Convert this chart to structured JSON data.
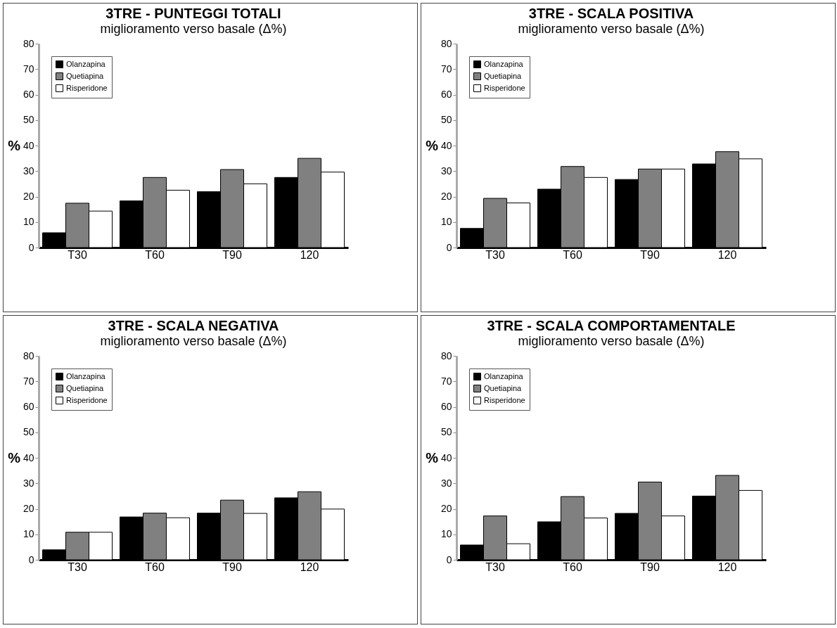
{
  "chart_data": [
    {
      "type": "bar",
      "title": "3TRE - PUNTEGGI TOTALI",
      "subtitle": "miglioramento verso basale (Δ%)",
      "ylabel": "%",
      "categories": [
        "T30",
        "T60",
        "T90",
        "120"
      ],
      "ylim": [
        0,
        80
      ],
      "yticks": [
        0,
        10,
        20,
        30,
        40,
        50,
        60,
        70,
        80
      ],
      "legend": "top left",
      "series": [
        {
          "name": "Olanzapina",
          "color": "#000000",
          "values": [
            5.8,
            18.3,
            21.9,
            27.5
          ]
        },
        {
          "name": "Quetiapina",
          "color": "#808080",
          "values": [
            17.4,
            27.5,
            30.6,
            35
          ]
        },
        {
          "name": "Risperidone",
          "color": "#ffffff",
          "values": [
            14.3,
            22.5,
            25,
            29.6
          ]
        }
      ]
    },
    {
      "type": "bar",
      "title": "3TRE - SCALA POSITIVA",
      "subtitle": "miglioramento verso basale (Δ%)",
      "ylabel": "%",
      "categories": [
        "T30",
        "T60",
        "T90",
        "120"
      ],
      "ylim": [
        0,
        80
      ],
      "yticks": [
        0,
        10,
        20,
        30,
        40,
        50,
        60,
        70,
        80
      ],
      "legend": "top left",
      "series": [
        {
          "name": "Olanzapina",
          "color": "#000000",
          "values": [
            7.5,
            22.9,
            26.7,
            32.8
          ]
        },
        {
          "name": "Quetiapina",
          "color": "#808080",
          "values": [
            19.3,
            31.8,
            30.8,
            37.6
          ]
        },
        {
          "name": "Risperidone",
          "color": "#ffffff",
          "values": [
            17.5,
            27.5,
            30.8,
            34.8
          ]
        }
      ]
    },
    {
      "type": "bar",
      "title": "3TRE - SCALA NEGATIVA",
      "subtitle": "miglioramento verso basale (Δ%)",
      "ylabel": "%",
      "categories": [
        "T30",
        "T60",
        "T90",
        "120"
      ],
      "ylim": [
        0,
        80
      ],
      "yticks": [
        0,
        10,
        20,
        30,
        40,
        50,
        60,
        70,
        80
      ],
      "legend": "top left",
      "series": [
        {
          "name": "Olanzapina",
          "color": "#000000",
          "values": [
            3.9,
            16.8,
            18.3,
            24.3
          ]
        },
        {
          "name": "Quetiapina",
          "color": "#808080",
          "values": [
            10.8,
            18.3,
            23.4,
            26.7
          ]
        },
        {
          "name": "Risperidone",
          "color": "#ffffff",
          "values": [
            10.8,
            16.5,
            18.2,
            19.9
          ]
        }
      ]
    },
    {
      "type": "bar",
      "title": "3TRE - SCALA COMPORTAMENTALE",
      "subtitle": "miglioramento verso basale (Δ%)",
      "ylabel": "%",
      "categories": [
        "T30",
        "T60",
        "T90",
        "120"
      ],
      "ylim": [
        0,
        80
      ],
      "yticks": [
        0,
        10,
        20,
        30,
        40,
        50,
        60,
        70,
        80
      ],
      "legend": "top left",
      "series": [
        {
          "name": "Olanzapina",
          "color": "#000000",
          "values": [
            5.8,
            14.9,
            18.2,
            25
          ]
        },
        {
          "name": "Quetiapina",
          "color": "#808080",
          "values": [
            17.2,
            24.8,
            30.5,
            33.1
          ]
        },
        {
          "name": "Risperidone",
          "color": "#ffffff",
          "values": [
            6.3,
            16.4,
            17.2,
            27.2
          ]
        }
      ]
    }
  ]
}
